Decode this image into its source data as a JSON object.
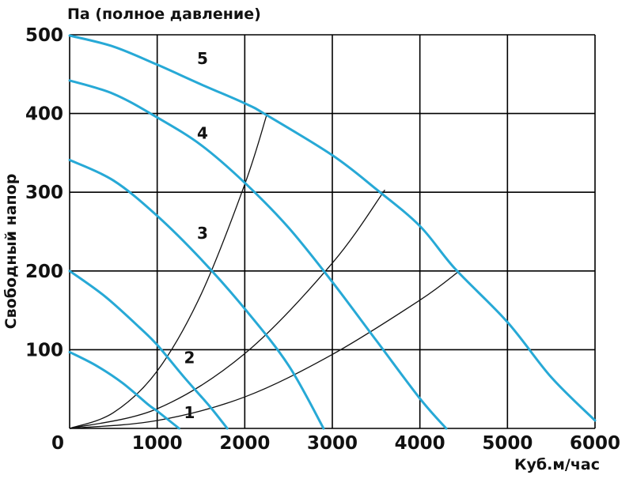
{
  "chart_data": {
    "type": "line",
    "title": "",
    "ylabel": "Свободный напор",
    "yunit_label": "Па (полное давление)",
    "xlabel": "Куб.м/час",
    "xlim": [
      0,
      6000
    ],
    "ylim": [
      0,
      500
    ],
    "x_ticks": [
      0,
      1000,
      2000,
      3000,
      4000,
      5000,
      6000
    ],
    "y_ticks": [
      100,
      200,
      300,
      400,
      500
    ],
    "grid": true,
    "series_color": "#27a9d6",
    "resistance_color": "#111111",
    "series": [
      {
        "name": "1",
        "points": [
          [
            0,
            97
          ],
          [
            300,
            80
          ],
          [
            600,
            58
          ],
          [
            900,
            30
          ],
          [
            1000,
            22
          ],
          [
            1250,
            0
          ]
        ]
      },
      {
        "name": "2",
        "points": [
          [
            0,
            200
          ],
          [
            400,
            168
          ],
          [
            800,
            128
          ],
          [
            1000,
            106
          ],
          [
            1300,
            66
          ],
          [
            1600,
            28
          ],
          [
            1800,
            0
          ]
        ]
      },
      {
        "name": "3",
        "points": [
          [
            0,
            341
          ],
          [
            500,
            315
          ],
          [
            1000,
            270
          ],
          [
            1500,
            215
          ],
          [
            2000,
            152
          ],
          [
            2500,
            80
          ],
          [
            2900,
            0
          ]
        ]
      },
      {
        "name": "4",
        "points": [
          [
            0,
            442
          ],
          [
            500,
            425
          ],
          [
            1000,
            395
          ],
          [
            1500,
            360
          ],
          [
            2000,
            312
          ],
          [
            2500,
            255
          ],
          [
            3000,
            186
          ],
          [
            3500,
            112
          ],
          [
            4000,
            38
          ],
          [
            4300,
            0
          ]
        ]
      },
      {
        "name": "5",
        "points": [
          [
            0,
            499
          ],
          [
            500,
            485
          ],
          [
            1000,
            462
          ],
          [
            1500,
            437
          ],
          [
            2000,
            413
          ],
          [
            2250,
            398
          ],
          [
            3000,
            347
          ],
          [
            3500,
            304
          ],
          [
            4000,
            257
          ],
          [
            4400,
            203
          ],
          [
            5000,
            135
          ],
          [
            5500,
            65
          ],
          [
            6000,
            10
          ]
        ]
      }
    ],
    "resistance_lines": [
      {
        "points": [
          [
            0,
            0
          ],
          [
            500,
            20
          ],
          [
            1000,
            73
          ],
          [
            1500,
            170
          ],
          [
            2000,
            310
          ],
          [
            2250,
            398
          ]
        ]
      },
      {
        "points": [
          [
            0,
            0
          ],
          [
            1000,
            25
          ],
          [
            2000,
            95
          ],
          [
            3000,
            210
          ],
          [
            3600,
            303
          ]
        ]
      },
      {
        "points": [
          [
            0,
            0
          ],
          [
            1000,
            10
          ],
          [
            2000,
            40
          ],
          [
            3000,
            94
          ],
          [
            4000,
            163
          ],
          [
            4450,
            200
          ]
        ]
      }
    ],
    "annotations": [
      {
        "text": "5",
        "x": 1500,
        "y": 470
      },
      {
        "text": "4",
        "x": 1500,
        "y": 375
      },
      {
        "text": "3",
        "x": 1500,
        "y": 248
      },
      {
        "text": "2",
        "x": 1350,
        "y": 90
      },
      {
        "text": "1",
        "x": 1350,
        "y": 20
      }
    ]
  }
}
